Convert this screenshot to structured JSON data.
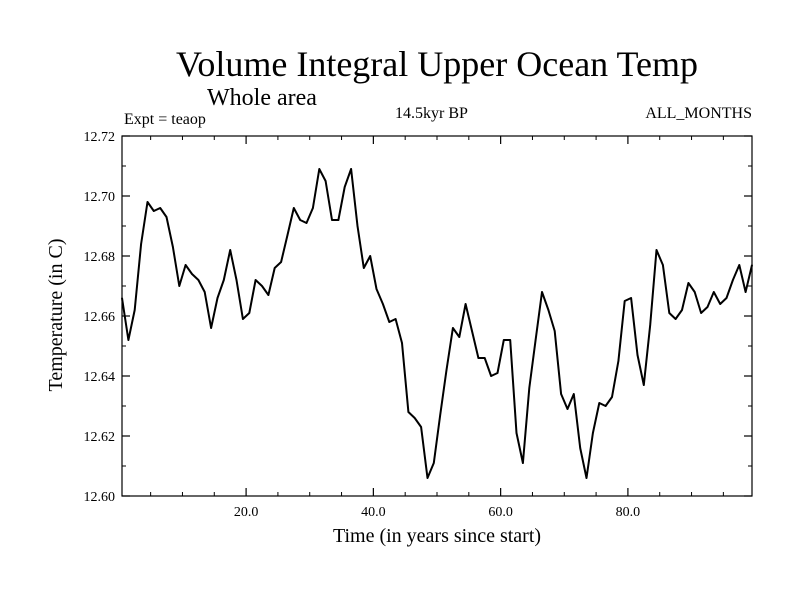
{
  "chart_data": {
    "type": "line",
    "title": "Volume Integral Upper Ocean Temp",
    "subtitle": "Whole area",
    "left_note": "Expt = teaop",
    "center_note": "14.5kyr BP",
    "right_note": "ALL_MONTHS",
    "xlabel": "Time (in years since start)",
    "ylabel": "Temperature (in C)",
    "xlim": [
      0.5,
      99.5
    ],
    "ylim": [
      12.6,
      12.72
    ],
    "xticks": [
      20.0,
      40.0,
      60.0,
      80.0
    ],
    "xtick_labels": [
      "20.0",
      "40.0",
      "60.0",
      "80.0"
    ],
    "yticks": [
      12.6,
      12.62,
      12.64,
      12.66,
      12.68,
      12.7,
      12.72
    ],
    "ytick_labels": [
      "12.60",
      "12.62",
      "12.64",
      "12.66",
      "12.68",
      "12.70",
      "12.72"
    ],
    "grid": false,
    "series": [
      {
        "name": "teaop",
        "x": [
          0.5,
          1.5,
          2.5,
          3.5,
          4.5,
          5.5,
          6.5,
          7.5,
          8.5,
          9.5,
          10.5,
          11.5,
          12.5,
          13.5,
          14.5,
          15.5,
          16.5,
          17.5,
          18.5,
          19.5,
          20.5,
          21.5,
          22.5,
          23.5,
          24.5,
          25.5,
          26.5,
          27.5,
          28.5,
          29.5,
          30.5,
          31.5,
          32.5,
          33.5,
          34.5,
          35.5,
          36.5,
          37.5,
          38.5,
          39.5,
          40.5,
          41.5,
          42.5,
          43.5,
          44.5,
          45.5,
          46.5,
          47.5,
          48.5,
          49.5,
          50.5,
          51.5,
          52.5,
          53.5,
          54.5,
          55.5,
          56.5,
          57.5,
          58.5,
          59.5,
          60.5,
          61.5,
          62.5,
          63.5,
          64.5,
          65.5,
          66.5,
          67.5,
          68.5,
          69.5,
          70.5,
          71.5,
          72.5,
          73.5,
          74.5,
          75.5,
          76.5,
          77.5,
          78.5,
          79.5,
          80.5,
          81.5,
          82.5,
          83.5,
          84.5,
          85.5,
          86.5,
          87.5,
          88.5,
          89.5,
          90.5,
          91.5,
          92.5,
          93.5,
          94.5,
          95.5,
          96.5,
          97.5,
          98.5,
          99.5
        ],
        "values": [
          12.666,
          12.652,
          12.662,
          12.684,
          12.698,
          12.695,
          12.696,
          12.693,
          12.683,
          12.67,
          12.677,
          12.674,
          12.672,
          12.668,
          12.656,
          12.666,
          12.672,
          12.682,
          12.672,
          12.659,
          12.661,
          12.672,
          12.67,
          12.667,
          12.676,
          12.678,
          12.687,
          12.696,
          12.692,
          12.691,
          12.696,
          12.709,
          12.705,
          12.692,
          12.692,
          12.703,
          12.709,
          12.69,
          12.676,
          12.68,
          12.669,
          12.664,
          12.658,
          12.659,
          12.651,
          12.628,
          12.626,
          12.623,
          12.606,
          12.611,
          12.627,
          12.642,
          12.656,
          12.653,
          12.664,
          12.655,
          12.646,
          12.646,
          12.64,
          12.641,
          12.652,
          12.652,
          12.621,
          12.611,
          12.636,
          12.652,
          12.668,
          12.662,
          12.655,
          12.634,
          12.629,
          12.634,
          12.616,
          12.606,
          12.621,
          12.631,
          12.63,
          12.633,
          12.645,
          12.665,
          12.666,
          12.647,
          12.637,
          12.657,
          12.682,
          12.677,
          12.661,
          12.659,
          12.662,
          12.671,
          12.668,
          12.661,
          12.663,
          12.668,
          12.664,
          12.666,
          12.672,
          12.677,
          12.668,
          12.677
        ]
      }
    ]
  }
}
